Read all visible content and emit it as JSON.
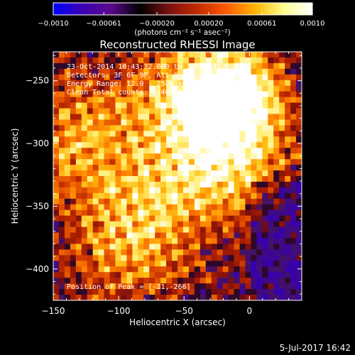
{
  "chart_data": {
    "type": "heatmap",
    "title": "Reconstructed RHESSI Image",
    "xlabel": "Heliocentric X (arcsec)",
    "ylabel": "Heliocentric Y (arcsec)",
    "xlim": [
      -150,
      40
    ],
    "ylim": [
      -425,
      -227
    ],
    "x_ticks": [
      -150,
      -100,
      -50,
      0
    ],
    "x_tick_labels": [
      "−150",
      "−100",
      "−50",
      "0"
    ],
    "y_ticks": [
      -250,
      -300,
      -350,
      -400
    ],
    "y_tick_labels": [
      "−250",
      "−300",
      "−350",
      "−400"
    ],
    "annotations": [
      "23-Oct-2014 10:43:32.000 to 10:53:32.000",
      "Detectors: 3F 6F 9F, Att 0",
      "Energy Range: 12.0 - 25.0 keV",
      "Clean    Total counts: 4.46E+03"
    ],
    "peak_text": "Position of Peak = [-21,-266]",
    "peak": [
      -21,
      -266
    ],
    "colorbar": {
      "range": [
        -0.001,
        0.001
      ],
      "tick_values": [
        -0.001,
        -0.00061,
        -0.0002,
        0.0002,
        0.00061,
        0.001
      ],
      "tick_labels": [
        "−0.0010",
        "−0.00061",
        "−0.00020",
        "0.00020",
        "0.00061",
        "0.0010"
      ],
      "unit_label": "(photons cm⁻² s⁻¹ asec⁻²)",
      "colors": [
        "#0000ff",
        "#3c00b4",
        "#5a0a8c",
        "#000000",
        "#7a1010",
        "#c02a00",
        "#ff5a00",
        "#ffb400",
        "#ffff90",
        "#ffffff"
      ]
    },
    "timestamp": "5-Jul-2017 16:42"
  }
}
